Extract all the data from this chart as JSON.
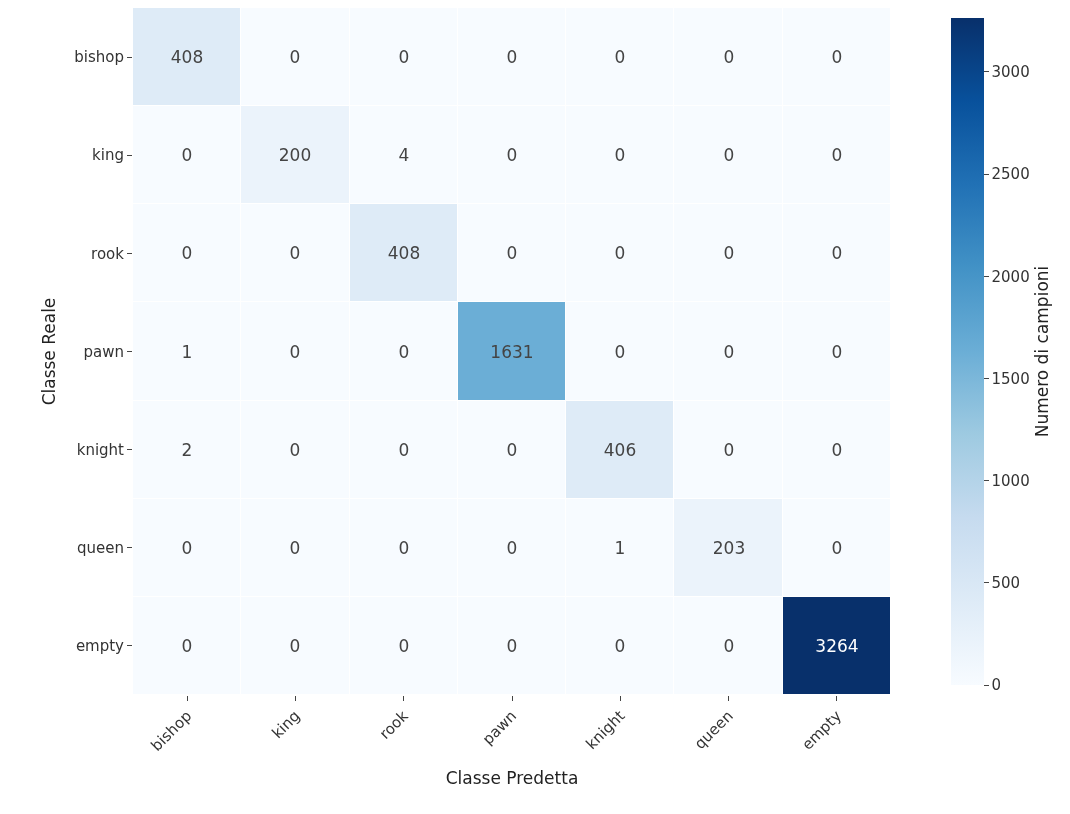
{
  "chart_data": {
    "type": "heatmap",
    "xlabel": "Classe Predetta",
    "ylabel": "Classe Reale",
    "clabel": "Numero di campioni",
    "categories": [
      "bishop",
      "king",
      "rook",
      "pawn",
      "knight",
      "queen",
      "empty"
    ],
    "y_categories": [
      "bishop",
      "king",
      "rook",
      "pawn",
      "knight",
      "queen",
      "empty"
    ],
    "cells": [
      [
        408,
        0,
        0,
        0,
        0,
        0,
        0
      ],
      [
        0,
        200,
        4,
        0,
        0,
        0,
        0
      ],
      [
        0,
        0,
        408,
        0,
        0,
        0,
        0
      ],
      [
        1,
        0,
        0,
        1631,
        0,
        0,
        0
      ],
      [
        2,
        0,
        0,
        0,
        406,
        0,
        0
      ],
      [
        0,
        0,
        0,
        0,
        1,
        203,
        0
      ],
      [
        0,
        0,
        0,
        0,
        0,
        0,
        3264
      ]
    ],
    "data_labels": true,
    "colors": [
      "#f7fbff",
      "#deebf7",
      "#c6dbef",
      "#9ecae1",
      "#6baed6",
      "#4292c6",
      "#2171b5",
      "#08519c",
      "#08306b"
    ],
    "clim": [
      0,
      3264
    ],
    "cticks": [
      0,
      500,
      1000,
      1500,
      2000,
      2500,
      3000
    ]
  }
}
